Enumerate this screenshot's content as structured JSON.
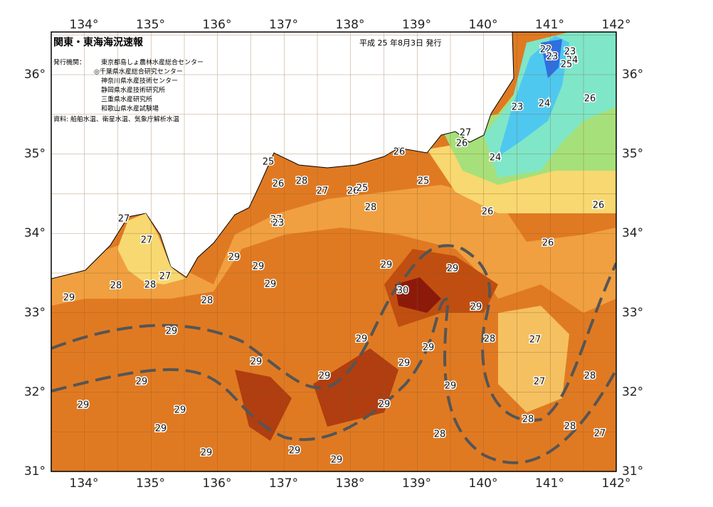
{
  "header": {
    "title": "関東・東海海況速報",
    "date": "平成 25 年8月3日 発行",
    "issuer_label": "発行機関：",
    "issuers": [
      "東京都島しょ農林水産総合センター",
      "◎千葉県水産総合研究センター",
      "神奈川県水産技術センター",
      "静岡県水産技術研究所",
      "三重県水産研究所",
      "和歌山県水産試験場"
    ],
    "source": "資料: 船舶水温、衛星水温、気象庁解析水温"
  },
  "axes": {
    "longitude_top": [
      "134°",
      "135°",
      "136°",
      "137°",
      "138°",
      "139°",
      "140°",
      "141°",
      "142°"
    ],
    "longitude_bottom": [
      "134°",
      "135°",
      "136°",
      "137°",
      "138°",
      "139°",
      "140°",
      "141°",
      "142°"
    ],
    "latitude_left": [
      "36°",
      "35°",
      "34°",
      "33°",
      "32°",
      "31°"
    ],
    "latitude_right": [
      "36°",
      "35°",
      "34°",
      "33°",
      "32°",
      "31°"
    ]
  },
  "temperature_labels": [
    22,
    23,
    23,
    24,
    25,
    23,
    24,
    26,
    27,
    26,
    26,
    24,
    25,
    26,
    28,
    27,
    26,
    25,
    25,
    28,
    26,
    26,
    27,
    27,
    23,
    27,
    26,
    29,
    29,
    29,
    29,
    28,
    27,
    28,
    29,
    30,
    29,
    28,
    29,
    29,
    29,
    28,
    27,
    29,
    29,
    29,
    29,
    29,
    27,
    28,
    29,
    29,
    29,
    29,
    28,
    28,
    27,
    29,
    28,
    29,
    29,
    29
  ]
}
